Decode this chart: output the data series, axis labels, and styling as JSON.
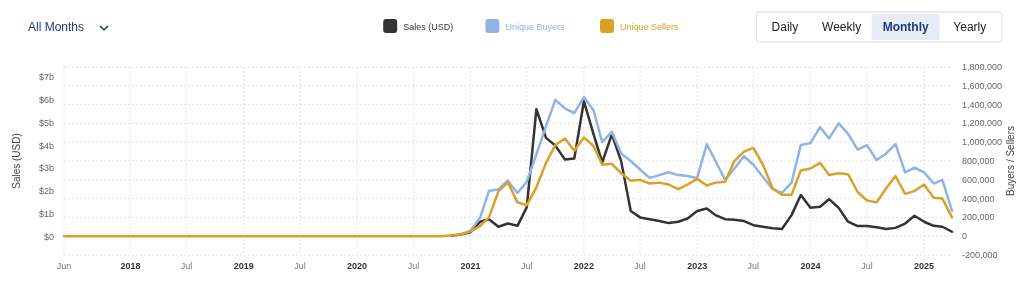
{
  "chart_data": {
    "type": "line",
    "xlabel": null,
    "ylabel": "Sales (USD)",
    "y2label": "Buyers / Sellers",
    "annotations": [
      "All Months",
      "Daily",
      "Weekly",
      "Monthly",
      "Yearly"
    ],
    "x": [
      "2017-06",
      "2017-07",
      "2017-08",
      "2017-09",
      "2017-10",
      "2017-11",
      "2017-12",
      "2018-01",
      "2018-02",
      "2018-03",
      "2018-04",
      "2018-05",
      "2018-06",
      "2018-07",
      "2018-08",
      "2018-09",
      "2018-10",
      "2018-11",
      "2018-12",
      "2019-01",
      "2019-02",
      "2019-03",
      "2019-04",
      "2019-05",
      "2019-06",
      "2019-07",
      "2019-08",
      "2019-09",
      "2019-10",
      "2019-11",
      "2019-12",
      "2020-01",
      "2020-02",
      "2020-03",
      "2020-04",
      "2020-05",
      "2020-06",
      "2020-07",
      "2020-08",
      "2020-09",
      "2020-10",
      "2020-11",
      "2020-12",
      "2021-01",
      "2021-02",
      "2021-03",
      "2021-04",
      "2021-05",
      "2021-06",
      "2021-07",
      "2021-08",
      "2021-09",
      "2021-10",
      "2021-11",
      "2021-12",
      "2022-01",
      "2022-02",
      "2022-03",
      "2022-04",
      "2022-05",
      "2022-06",
      "2022-07",
      "2022-08",
      "2022-09",
      "2022-10",
      "2022-11",
      "2022-12",
      "2023-01",
      "2023-02",
      "2023-03",
      "2023-04",
      "2023-05",
      "2023-06",
      "2023-07",
      "2023-08",
      "2023-09",
      "2023-10",
      "2023-11",
      "2023-12",
      "2024-01",
      "2024-02",
      "2024-03",
      "2024-04",
      "2024-05",
      "2024-06",
      "2024-07",
      "2024-08",
      "2024-09",
      "2024-10",
      "2024-11",
      "2024-12",
      "2025-01",
      "2025-02",
      "2025-03",
      "2025-04"
    ],
    "series": [
      {
        "name": "Sales (USD)",
        "color": "#333333",
        "axis": "y",
        "values": [
          null,
          null,
          null,
          null,
          null,
          null,
          null,
          null,
          null,
          null,
          null,
          null,
          null,
          null,
          null,
          null,
          null,
          null,
          null,
          null,
          null,
          null,
          null,
          null,
          null,
          null,
          null,
          null,
          null,
          null,
          null,
          null,
          null,
          null,
          null,
          null,
          null,
          null,
          null,
          null,
          null,
          0.05,
          0.1,
          0.2,
          0.66,
          0.77,
          0.44,
          0.58,
          0.48,
          1.3,
          5.6,
          4.34,
          4.0,
          3.39,
          3.43,
          5.95,
          4.5,
          3.26,
          4.49,
          3.32,
          1.13,
          0.85,
          0.77,
          0.69,
          0.6,
          0.66,
          0.8,
          1.13,
          1.24,
          0.95,
          0.77,
          0.75,
          0.69,
          0.51,
          0.44,
          0.37,
          0.34,
          0.95,
          1.83,
          1.27,
          1.32,
          1.65,
          1.27,
          0.66,
          0.47,
          0.47,
          0.42,
          0.34,
          0.39,
          0.58,
          0.92,
          0.66,
          0.48,
          0.44,
          0.22
        ]
      },
      {
        "name": "Unique Buyers",
        "color": "#8fb3e6",
        "axis": "y2",
        "values": [
          null,
          null,
          null,
          null,
          null,
          null,
          null,
          null,
          null,
          null,
          null,
          null,
          null,
          null,
          null,
          null,
          null,
          null,
          null,
          null,
          null,
          null,
          null,
          null,
          null,
          null,
          null,
          null,
          null,
          null,
          null,
          null,
          null,
          null,
          null,
          null,
          null,
          null,
          null,
          null,
          null,
          null,
          20000,
          60000,
          200000,
          480000,
          500000,
          590000,
          460000,
          580000,
          870000,
          1170000,
          1450000,
          1360000,
          1310000,
          1480000,
          1340000,
          1000000,
          1110000,
          880000,
          800000,
          710000,
          620000,
          650000,
          680000,
          650000,
          640000,
          620000,
          980000,
          800000,
          600000,
          720000,
          850000,
          760000,
          630000,
          500000,
          460000,
          570000,
          970000,
          990000,
          1160000,
          1040000,
          1200000,
          1090000,
          920000,
          970000,
          810000,
          880000,
          980000,
          680000,
          730000,
          680000,
          560000,
          600000,
          270000
        ]
      },
      {
        "name": "Unique Sellers",
        "color": "#d9a12a",
        "axis": "y2",
        "values": [
          0,
          0,
          0,
          0,
          0,
          0,
          0,
          0,
          0,
          0,
          0,
          0,
          0,
          0,
          0,
          0,
          0,
          0,
          0,
          0,
          0,
          0,
          0,
          0,
          0,
          0,
          0,
          0,
          0,
          0,
          0,
          0,
          0,
          0,
          0,
          0,
          0,
          0,
          0,
          0,
          0,
          10000,
          20000,
          50000,
          110000,
          200000,
          480000,
          570000,
          360000,
          330000,
          520000,
          780000,
          970000,
          1040000,
          910000,
          1050000,
          960000,
          760000,
          770000,
          670000,
          590000,
          600000,
          560000,
          570000,
          550000,
          500000,
          550000,
          610000,
          540000,
          570000,
          580000,
          800000,
          900000,
          940000,
          760000,
          510000,
          440000,
          440000,
          700000,
          720000,
          780000,
          650000,
          670000,
          660000,
          470000,
          380000,
          360000,
          510000,
          640000,
          450000,
          480000,
          550000,
          410000,
          400000,
          200000
        ]
      }
    ],
    "xlim": [
      "2017-06",
      "2025-04"
    ],
    "xticks": [
      {
        "value": "2017-06",
        "label": "Jun"
      },
      {
        "value": "2018",
        "label": "2018"
      },
      {
        "value": "2018-07",
        "label": "Jul"
      },
      {
        "value": "2019",
        "label": "2019"
      },
      {
        "value": "2019-07",
        "label": "Jul"
      },
      {
        "value": "2020",
        "label": "2020"
      },
      {
        "value": "2020-07",
        "label": "Jul"
      },
      {
        "value": "2021",
        "label": "2021"
      },
      {
        "value": "2021-07",
        "label": "Jul"
      },
      {
        "value": "2022",
        "label": "2022"
      },
      {
        "value": "2022-07",
        "label": "Jul"
      },
      {
        "value": "2023",
        "label": "2023"
      },
      {
        "value": "2023-07",
        "label": "Jul"
      },
      {
        "value": "2024",
        "label": "2024"
      },
      {
        "value": "2024-07",
        "label": "Jul"
      },
      {
        "value": "2025",
        "label": "2025"
      }
    ],
    "ylim": [
      -0.8,
      7.45
    ],
    "yticks": [
      {
        "value": 0,
        "label": "$0"
      },
      {
        "value": 1,
        "label": "$1b"
      },
      {
        "value": 2,
        "label": "$2b"
      },
      {
        "value": 3,
        "label": "$3b"
      },
      {
        "value": 4,
        "label": "$4b"
      },
      {
        "value": 5,
        "label": "$5b"
      },
      {
        "value": 6,
        "label": "$6b"
      },
      {
        "value": 7,
        "label": "$7b"
      }
    ],
    "y2lim": [
      -200000,
      1800000
    ],
    "y2ticks": [
      {
        "value": -200000,
        "label": "-200,000"
      },
      {
        "value": 0,
        "label": "0"
      },
      {
        "value": 200000,
        "label": "200,000"
      },
      {
        "value": 400000,
        "label": "400,000"
      },
      {
        "value": 600000,
        "label": "600,000"
      },
      {
        "value": 800000,
        "label": "800,000"
      },
      {
        "value": 1000000,
        "label": "1,000,000"
      },
      {
        "value": 1200000,
        "label": "1,200,000"
      },
      {
        "value": 1400000,
        "label": "1,400,000"
      },
      {
        "value": 1600000,
        "label": "1,600,000"
      },
      {
        "value": 1800000,
        "label": "1,800,000"
      }
    ],
    "grid": true,
    "legend": "top",
    "marker": "none",
    "line_style": "solid"
  }
}
